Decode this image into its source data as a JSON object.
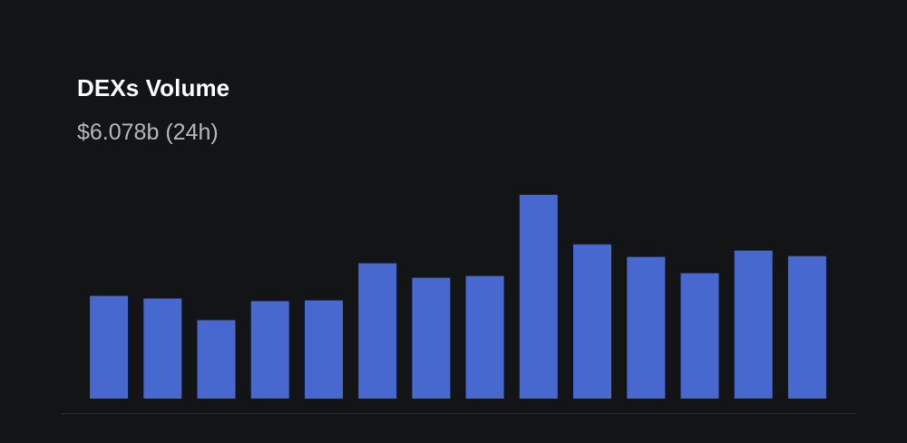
{
  "header": {
    "title": "DEXs Volume",
    "subtitle": "$6.078b (24h)"
  },
  "colors": {
    "background": "#131416",
    "bar": "#4768cf",
    "baseline": "#2a2c31"
  },
  "chart_data": {
    "type": "bar",
    "title": "DEXs Volume",
    "subtitle": "$6.078b (24h)",
    "xlabel": "",
    "ylabel": "",
    "ylim": [
      0,
      100
    ],
    "grid": false,
    "values": [
      50.4,
      49.1,
      38.5,
      47.8,
      48.2,
      66.4,
      59.3,
      60.2,
      100,
      75.7,
      69.5,
      61.5,
      72.6,
      69.9
    ]
  }
}
